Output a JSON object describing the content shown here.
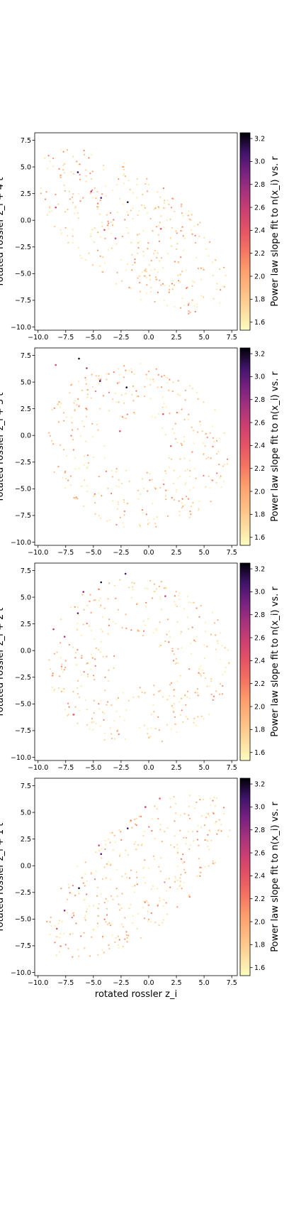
{
  "chart_data": [
    {
      "type": "scatter",
      "panel": "t+4",
      "ylabel": "rotated rossler z_i + 4 t",
      "xlabel": "",
      "xlim": [
        -10.3,
        8.0
      ],
      "ylim": [
        -10.3,
        8.2
      ],
      "xticks": [
        "−10.0",
        "−7.5",
        "−5.0",
        "−2.5",
        "0.0",
        "2.5",
        "5.0",
        "7.5"
      ],
      "yticks": [
        "7.5",
        "5.0",
        "2.5",
        "0.0",
        "−2.5",
        "−5.0",
        "−7.5",
        "−10.0"
      ],
      "colorbar": {
        "label": "Power law slope fit to n(x_i) vs. r",
        "range": [
          1.53,
          3.25
        ],
        "ticks": [
          "3.2",
          "3.0",
          "2.8",
          "2.6",
          "2.4",
          "2.2",
          "2.0",
          "1.8",
          "1.6"
        ]
      },
      "cloud": {
        "kind": "band",
        "center": [
          -1.5,
          -1.0
        ],
        "angle_deg": -40,
        "len": 10.5,
        "wid": 5.0,
        "hole": 0
      },
      "highlights": [
        {
          "x": -6.4,
          "y": 4.5,
          "v": 3.1
        },
        {
          "x": -4.3,
          "y": 2.1,
          "v": 3.0
        },
        {
          "x": -1.9,
          "y": 1.7,
          "v": 3.2
        },
        {
          "x": -5.2,
          "y": 2.7,
          "v": 2.6
        },
        {
          "x": -3.0,
          "y": -1.7,
          "v": 2.5
        },
        {
          "x": 1.1,
          "y": -0.8,
          "v": 2.4
        },
        {
          "x": -8.4,
          "y": 1.2,
          "v": 2.5
        },
        {
          "x": -4.0,
          "y": -0.9,
          "v": 2.4
        }
      ]
    },
    {
      "type": "scatter",
      "panel": "t+3",
      "ylabel": "rotated rossler z_i + 3 t",
      "xlabel": "",
      "xlim": [
        -10.3,
        8.0
      ],
      "ylim": [
        -10.3,
        8.2
      ],
      "xticks": [
        "−10.0",
        "−7.5",
        "−5.0",
        "−2.5",
        "0.0",
        "2.5",
        "5.0",
        "7.5"
      ],
      "yticks": [
        "7.5",
        "5.0",
        "2.5",
        "0.0",
        "−2.5",
        "−5.0",
        "−7.5",
        "−10.0"
      ],
      "colorbar": {
        "label": "Power law slope fit to n(x_i) vs. r",
        "range": [
          1.53,
          3.25
        ],
        "ticks": [
          "3.2",
          "3.0",
          "2.8",
          "2.6",
          "2.4",
          "2.2",
          "2.0",
          "1.8",
          "1.6"
        ]
      },
      "cloud": {
        "kind": "ring",
        "center": [
          -1.0,
          -1.0
        ],
        "angle_deg": -30,
        "len": 8.5,
        "wid": 7.6,
        "hole": 0.35
      },
      "highlights": [
        {
          "x": -6.3,
          "y": 7.2,
          "v": 3.2
        },
        {
          "x": -4.4,
          "y": 5.1,
          "v": 3.1
        },
        {
          "x": -2.0,
          "y": 4.5,
          "v": 3.2
        },
        {
          "x": -5.6,
          "y": 6.3,
          "v": 2.7
        },
        {
          "x": -8.4,
          "y": 6.6,
          "v": 2.5
        },
        {
          "x": -2.6,
          "y": 0.4,
          "v": 2.4
        },
        {
          "x": 1.3,
          "y": 2.0,
          "v": 2.4
        },
        {
          "x": 2.0,
          "y": -1.0,
          "v": 2.3
        }
      ]
    },
    {
      "type": "scatter",
      "panel": "t+2",
      "ylabel": "rotated rossler z_i + 2 t",
      "xlabel": "",
      "xlim": [
        -10.3,
        8.0
      ],
      "ylim": [
        -10.3,
        8.2
      ],
      "xticks": [
        "−10.0",
        "−7.5",
        "−5.0",
        "−2.5",
        "0.0",
        "2.5",
        "5.0",
        "7.5"
      ],
      "yticks": [
        "7.5",
        "5.0",
        "2.5",
        "0.0",
        "−2.5",
        "−5.0",
        "−7.5",
        "−10.0"
      ],
      "colorbar": {
        "label": "Power law slope fit to n(x_i) vs. r",
        "range": [
          1.53,
          3.25
        ],
        "ticks": [
          "3.2",
          "3.0",
          "2.8",
          "2.6",
          "2.4",
          "2.2",
          "2.0",
          "1.8",
          "1.6"
        ]
      },
      "cloud": {
        "kind": "ring",
        "center": [
          -1.0,
          -1.0
        ],
        "angle_deg": 0,
        "len": 8.3,
        "wid": 8.0,
        "hole": 0.32
      },
      "highlights": [
        {
          "x": -4.3,
          "y": 6.4,
          "v": 3.2
        },
        {
          "x": -2.1,
          "y": 7.2,
          "v": 3.1
        },
        {
          "x": -6.4,
          "y": 3.5,
          "v": 3.0
        },
        {
          "x": -5.9,
          "y": 5.5,
          "v": 2.8
        },
        {
          "x": -8.6,
          "y": 2.0,
          "v": 2.6
        },
        {
          "x": -7.6,
          "y": 1.3,
          "v": 2.7
        },
        {
          "x": 1.5,
          "y": 5.1,
          "v": 2.5
        },
        {
          "x": -6.8,
          "y": -6.0,
          "v": 2.4
        }
      ]
    },
    {
      "type": "scatter",
      "panel": "t+1",
      "ylabel": "rotated rossler z_i + 1 t",
      "xlabel": "rotated rossler z_i",
      "xlim": [
        -10.3,
        8.0
      ],
      "ylim": [
        -10.3,
        8.2
      ],
      "xticks": [
        "−10.0",
        "−7.5",
        "−5.0",
        "−2.5",
        "0.0",
        "2.5",
        "5.0",
        "7.5"
      ],
      "yticks": [
        "7.5",
        "5.0",
        "2.5",
        "0.0",
        "−2.5",
        "−5.0",
        "−7.5",
        "−10.0"
      ],
      "colorbar": {
        "label": "Power law slope fit to n(x_i) vs. r",
        "range": [
          1.53,
          3.25
        ],
        "ticks": [
          "3.2",
          "3.0",
          "2.8",
          "2.6",
          "2.4",
          "2.2",
          "2.0",
          "1.8",
          "1.6"
        ]
      },
      "cloud": {
        "kind": "band",
        "center": [
          -1.0,
          -1.0
        ],
        "angle_deg": 42,
        "len": 10.5,
        "wid": 4.8,
        "hole": 0
      },
      "highlights": [
        {
          "x": -6.3,
          "y": -2.1,
          "v": 3.2
        },
        {
          "x": -4.3,
          "y": 1.1,
          "v": 3.0
        },
        {
          "x": -1.9,
          "y": 3.5,
          "v": 3.1
        },
        {
          "x": -7.6,
          "y": -4.2,
          "v": 2.8
        },
        {
          "x": -0.3,
          "y": 5.5,
          "v": 2.6
        },
        {
          "x": -4.5,
          "y": 1.9,
          "v": 2.5
        },
        {
          "x": -8.3,
          "y": -5.9,
          "v": 2.4
        },
        {
          "x": 1.0,
          "y": 6.3,
          "v": 2.3
        }
      ]
    }
  ]
}
